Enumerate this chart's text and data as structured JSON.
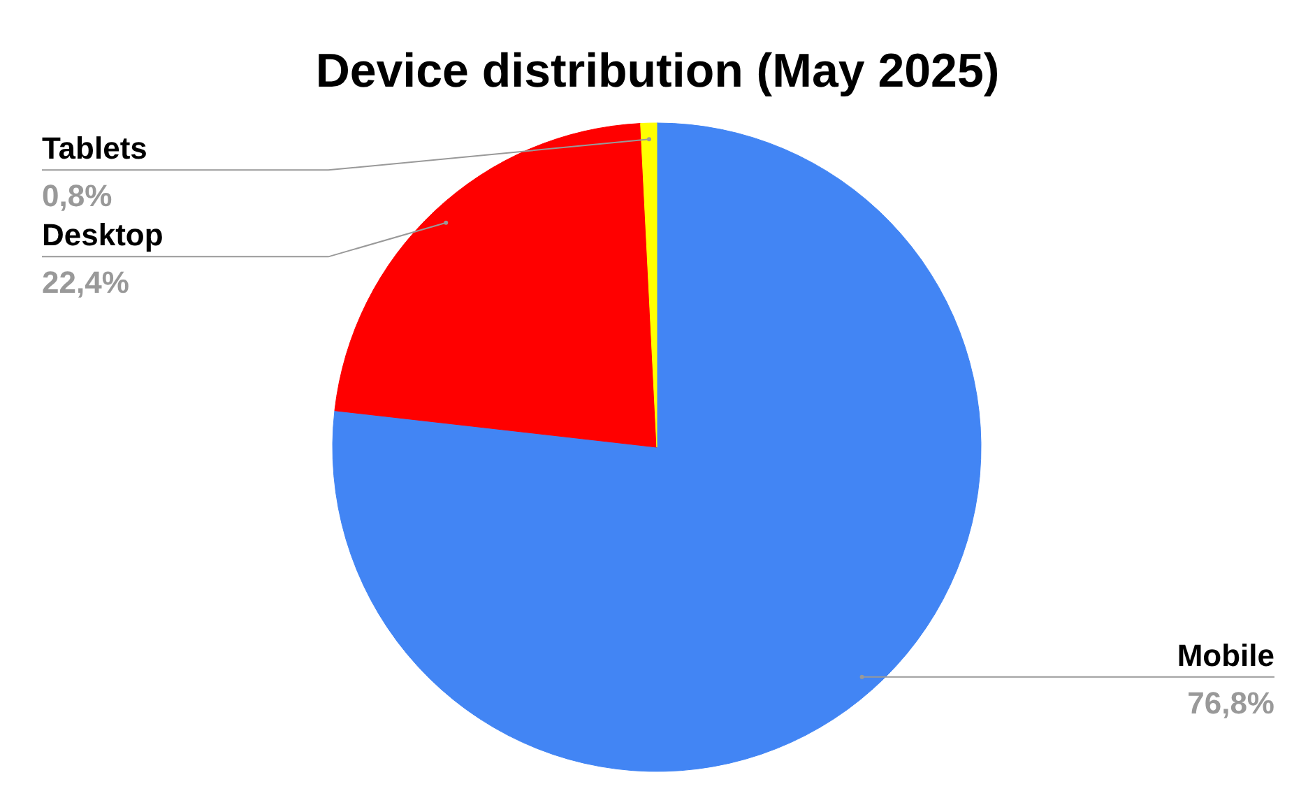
{
  "chart_data": {
    "type": "pie",
    "title": "Device distribution (May 2025)",
    "categories": [
      "Mobile",
      "Desktop",
      "Tablets"
    ],
    "values": [
      76.8,
      22.4,
      0.8
    ],
    "colors": [
      "#4285f4",
      "#ff0000",
      "#ffff00"
    ],
    "value_labels": [
      "76,8%",
      "22,4%",
      "0,8%"
    ]
  }
}
